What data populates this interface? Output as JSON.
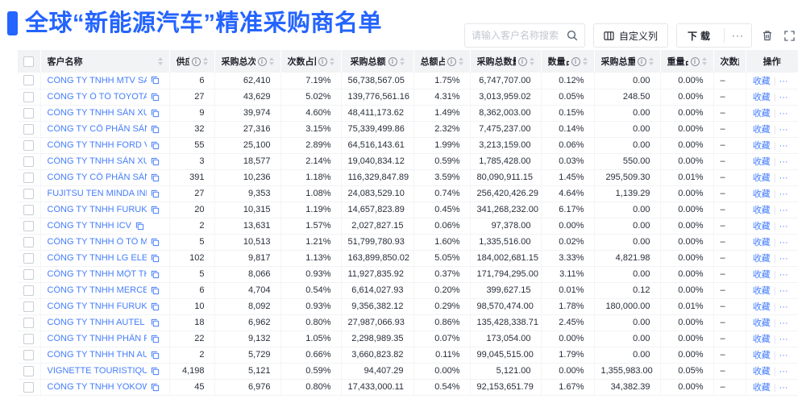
{
  "header": {
    "title": "全球“新能源汽车”精准采购商名单"
  },
  "toolbar": {
    "search_placeholder": "请输入客户名称搜索",
    "customize_columns_label": "自定义列",
    "download_label": "下载",
    "more_label": "···"
  },
  "table": {
    "columns": [
      {
        "key": "name",
        "label": "客户名称",
        "info": false,
        "sortable": true
      },
      {
        "key": "suppliers",
        "label": "供应商",
        "info": true,
        "sortable": true
      },
      {
        "key": "purchase_count",
        "label": "采购总次数",
        "info": true,
        "sortable": true
      },
      {
        "key": "count_pct",
        "label": "次数占比",
        "info": true,
        "sortable": true
      },
      {
        "key": "amount",
        "label": "采购总额",
        "info": true,
        "sortable": true
      },
      {
        "key": "amount_pct",
        "label": "总额占比",
        "info": true,
        "sortable": true
      },
      {
        "key": "quantity",
        "label": "采购总数量",
        "info": true,
        "sortable": true
      },
      {
        "key": "quantity_pct",
        "label": "数量占比",
        "info": true,
        "sortable": true
      },
      {
        "key": "weight",
        "label": "采购总重量",
        "info": true,
        "sortable": true
      },
      {
        "key": "weight_pct",
        "label": "重量占比",
        "info": true,
        "sortable": true
      },
      {
        "key": "trend",
        "label": "次数趋势",
        "info": false,
        "sortable": false
      },
      {
        "key": "actions",
        "label": "操作",
        "info": false,
        "sortable": false
      }
    ],
    "row_actions": {
      "favorite": "收藏",
      "more": "···"
    },
    "rows": [
      {
        "name": "CÔNG TY TNHH MTV SẢN XUẤ...",
        "suppliers": "6",
        "purchase_count": "62,410",
        "count_pct": "7.19%",
        "amount": "56,738,567.05",
        "amount_pct": "1.75%",
        "quantity": "6,747,707.00",
        "quantity_pct": "0.12%",
        "weight": "0.00",
        "weight_pct": "0.00%",
        "trend": "–"
      },
      {
        "name": "CÔNG TY Ô TÔ TOYOTA VIỆT ...",
        "suppliers": "27",
        "purchase_count": "43,629",
        "count_pct": "5.02%",
        "amount": "139,776,561.16",
        "amount_pct": "4.31%",
        "quantity": "3,013,959.02",
        "quantity_pct": "0.05%",
        "weight": "248.50",
        "weight_pct": "0.00%",
        "trend": "–"
      },
      {
        "name": "CÔNG TY TNHH SẢN XUẤT VÀ ...",
        "suppliers": "9",
        "purchase_count": "39,974",
        "count_pct": "4.60%",
        "amount": "48,411,173.62",
        "amount_pct": "1.49%",
        "quantity": "8,362,003.00",
        "quantity_pct": "0.15%",
        "weight": "0.00",
        "weight_pct": "0.00%",
        "trend": "–"
      },
      {
        "name": "CÔNG TY CỔ PHẦN SẢN XUẤT...",
        "suppliers": "32",
        "purchase_count": "27,316",
        "count_pct": "3.15%",
        "amount": "75,339,499.86",
        "amount_pct": "2.32%",
        "quantity": "7,475,237.00",
        "quantity_pct": "0.14%",
        "weight": "0.00",
        "weight_pct": "0.00%",
        "trend": "–"
      },
      {
        "name": "CÔNG TY TNHH FORD VIỆT NAM",
        "suppliers": "55",
        "purchase_count": "25,100",
        "count_pct": "2.89%",
        "amount": "64,516,143.61",
        "amount_pct": "1.99%",
        "quantity": "3,213,159.00",
        "quantity_pct": "0.06%",
        "weight": "0.00",
        "weight_pct": "0.00%",
        "trend": "–"
      },
      {
        "name": "CÔNG TY TNHH SẢN XUẤT VÀ ...",
        "suppliers": "3",
        "purchase_count": "18,577",
        "count_pct": "2.14%",
        "amount": "19,040,834.12",
        "amount_pct": "0.59%",
        "quantity": "1,785,428.00",
        "quantity_pct": "0.03%",
        "weight": "550.00",
        "weight_pct": "0.00%",
        "trend": "–"
      },
      {
        "name": "CÔNG TY CỔ PHẦN SẢN XUẤT...",
        "suppliers": "391",
        "purchase_count": "10,236",
        "count_pct": "1.18%",
        "amount": "116,329,847.89",
        "amount_pct": "3.59%",
        "quantity": "80,090,911.15",
        "quantity_pct": "1.45%",
        "weight": "295,509.30",
        "weight_pct": "0.01%",
        "trend": "–"
      },
      {
        "name": "FUJITSU TEN MINDA INDIA PVT...",
        "suppliers": "27",
        "purchase_count": "9,353",
        "count_pct": "1.08%",
        "amount": "24,083,529.10",
        "amount_pct": "0.74%",
        "quantity": "256,420,426.29",
        "quantity_pct": "4.64%",
        "weight": "1,139.29",
        "weight_pct": "0.00%",
        "trend": "–"
      },
      {
        "name": "CÔNG TY TNHH FURUKAWA A...",
        "suppliers": "20",
        "purchase_count": "10,315",
        "count_pct": "1.19%",
        "amount": "14,657,823.89",
        "amount_pct": "0.45%",
        "quantity": "341,268,232.00",
        "quantity_pct": "6.17%",
        "weight": "0.00",
        "weight_pct": "0.00%",
        "trend": "–"
      },
      {
        "name": "CÔNG TY TNHH ICV",
        "suppliers": "2",
        "purchase_count": "13,631",
        "count_pct": "1.57%",
        "amount": "2,027,827.15",
        "amount_pct": "0.06%",
        "quantity": "97,378.00",
        "quantity_pct": "0.00%",
        "weight": "0.00",
        "weight_pct": "0.00%",
        "trend": "–"
      },
      {
        "name": "CÔNG TY TNHH Ô TÔ MITSUBI...",
        "suppliers": "5",
        "purchase_count": "10,513",
        "count_pct": "1.21%",
        "amount": "51,799,780.93",
        "amount_pct": "1.60%",
        "quantity": "1,335,516.00",
        "quantity_pct": "0.02%",
        "weight": "0.00",
        "weight_pct": "0.00%",
        "trend": "–"
      },
      {
        "name": "CÔNG TY TNHH LG ELECTRON...",
        "suppliers": "102",
        "purchase_count": "9,817",
        "count_pct": "1.13%",
        "amount": "163,899,850.02",
        "amount_pct": "5.05%",
        "quantity": "184,002,681.15",
        "quantity_pct": "3.33%",
        "weight": "4,821.98",
        "weight_pct": "0.00%",
        "trend": "–"
      },
      {
        "name": "CÔNG TY TNHH MỘT THÀNH V...",
        "suppliers": "5",
        "purchase_count": "8,066",
        "count_pct": "0.93%",
        "amount": "11,927,835.92",
        "amount_pct": "0.37%",
        "quantity": "171,794,295.00",
        "quantity_pct": "3.11%",
        "weight": "0.00",
        "weight_pct": "0.00%",
        "trend": "–"
      },
      {
        "name": "CÔNG TY TNHH MERCEDES-B...",
        "suppliers": "6",
        "purchase_count": "4,704",
        "count_pct": "0.54%",
        "amount": "6,614,027.93",
        "amount_pct": "0.20%",
        "quantity": "399,627.15",
        "quantity_pct": "0.01%",
        "weight": "0.12",
        "weight_pct": "0.00%",
        "trend": "–"
      },
      {
        "name": "CÔNG TY TNHH FURUKAWA A...",
        "suppliers": "10",
        "purchase_count": "8,092",
        "count_pct": "0.93%",
        "amount": "9,356,382.12",
        "amount_pct": "0.29%",
        "quantity": "98,570,474.00",
        "quantity_pct": "1.78%",
        "weight": "180,000.00",
        "weight_pct": "0.01%",
        "trend": "–"
      },
      {
        "name": "CÔNG TY TNHH AUTEL VIỆT N...",
        "suppliers": "18",
        "purchase_count": "6,962",
        "count_pct": "0.80%",
        "amount": "27,987,066.93",
        "amount_pct": "0.86%",
        "quantity": "135,428,338.71",
        "quantity_pct": "2.45%",
        "weight": "0.00",
        "weight_pct": "0.00%",
        "trend": "–"
      },
      {
        "name": "CÔNG TY TNHH PHÂN PHỐI T...",
        "suppliers": "22",
        "purchase_count": "9,132",
        "count_pct": "1.05%",
        "amount": "2,298,989.35",
        "amount_pct": "0.07%",
        "quantity": "173,054.00",
        "quantity_pct": "0.00%",
        "weight": "0.00",
        "weight_pct": "0.00%",
        "trend": "–"
      },
      {
        "name": "CÔNG TY TNHH THN AUTOPAR...",
        "suppliers": "2",
        "purchase_count": "5,729",
        "count_pct": "0.66%",
        "amount": "3,660,823.82",
        "amount_pct": "0.11%",
        "quantity": "99,045,515.00",
        "quantity_pct": "1.79%",
        "weight": "0.00",
        "weight_pct": "0.00%",
        "trend": "–"
      },
      {
        "name": "VIGNETTE TOURISTIQUE G UNI...",
        "suppliers": "4,198",
        "purchase_count": "5,121",
        "count_pct": "0.59%",
        "amount": "94,407.29",
        "amount_pct": "0.00%",
        "quantity": "5,121.00",
        "quantity_pct": "0.00%",
        "weight": "1,355,983.00",
        "weight_pct": "0.05%",
        "trend": "–"
      },
      {
        "name": "CÔNG TY TNHH YOKOWO VIỆT...",
        "suppliers": "45",
        "purchase_count": "6,976",
        "count_pct": "0.80%",
        "amount": "17,433,000.11",
        "amount_pct": "0.54%",
        "quantity": "92,153,651.79",
        "quantity_pct": "1.67%",
        "weight": "34,382.39",
        "weight_pct": "0.00%",
        "trend": "–"
      }
    ]
  },
  "colors": {
    "accent_blue": "#2464FF",
    "link_blue": "#447DFC",
    "header_bg": "#F2F3F5"
  }
}
